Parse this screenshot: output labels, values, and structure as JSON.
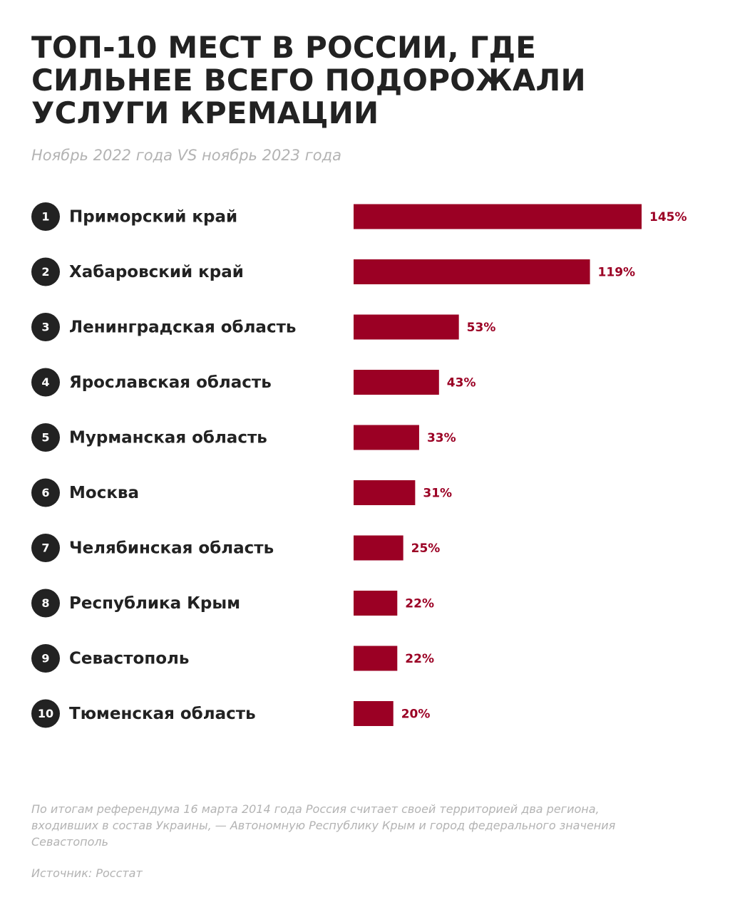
{
  "header": {
    "title_lines": [
      "ТОП-10 МЕСТ В РОССИИ, ГДЕ",
      "СИЛЬНЕЕ ВСЕГО ПОДОРОЖАЛИ",
      "УСЛУГИ КРЕМАЦИИ"
    ],
    "subtitle": "Ноябрь 2022 года VS ноябрь 2023 года"
  },
  "chart_data": {
    "type": "bar",
    "orientation": "horizontal",
    "title": "ТОП-10 МЕСТ В РОССИИ, ГДЕ СИЛЬНЕЕ ВСЕГО ПОДОРОЖАЛИ УСЛУГИ КРЕМАЦИИ",
    "subtitle": "Ноябрь 2022 года VS ноябрь 2023 года",
    "ranks": [
      "1",
      "2",
      "3",
      "4",
      "5",
      "6",
      "7",
      "8",
      "9",
      "10"
    ],
    "categories": [
      "Приморский край",
      "Хабаровский край",
      "Ленинградская область",
      "Ярославская область",
      "Мурманская область",
      "Москва",
      "Челябинская область",
      "Республика Крым",
      "Севастополь",
      "Тюменская область"
    ],
    "values": [
      145,
      119,
      53,
      43,
      33,
      31,
      25,
      22,
      22,
      20
    ],
    "value_labels": [
      "145%",
      "119%",
      "53%",
      "43%",
      "33%",
      "31%",
      "25%",
      "22%",
      "22%",
      "20%"
    ],
    "unit": "%",
    "xlim": [
      0,
      145
    ],
    "grid": false,
    "legend": "none",
    "colors": {
      "bar": "#9b0024",
      "value_label": "#9b0024",
      "rank_circle": "#222222",
      "category_label": "#222222"
    }
  },
  "footer": {
    "footnote": "По итогам референдума 16 марта 2014 года Россия считает своей территорией два региона, входивших в состав Украины, — Автономную Республику Крым и город федерального значения Севастополь",
    "source": "Источник: Росстат"
  }
}
